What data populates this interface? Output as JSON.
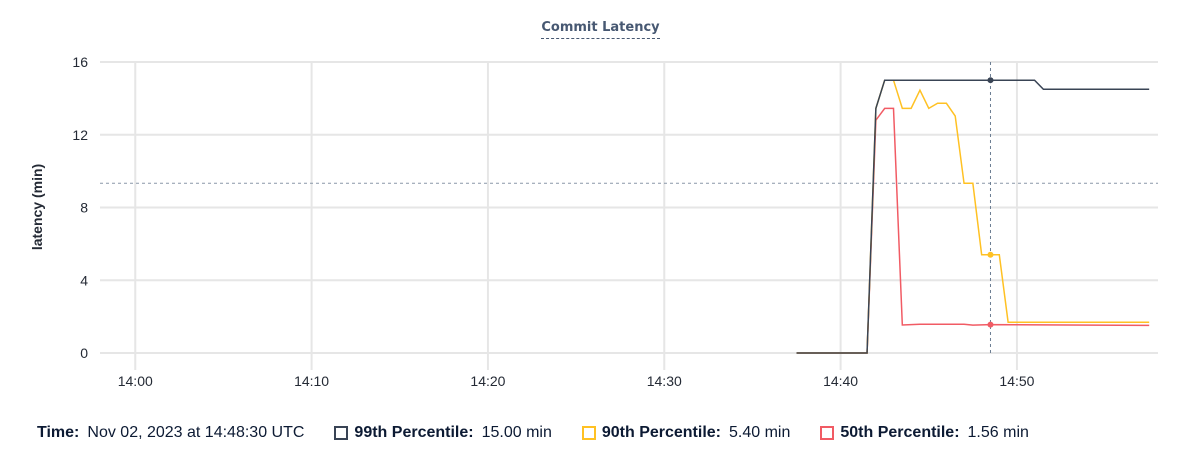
{
  "chart_data": {
    "type": "line",
    "title": "Commit Latency",
    "ylabel": "latency (min)",
    "xlabel": "",
    "ylim": [
      0,
      16
    ],
    "yticks": [
      0,
      4,
      8,
      12,
      16
    ],
    "xlim": [
      "13:58:00",
      "14:58:00"
    ],
    "xticks": [
      "14:00",
      "14:10",
      "14:20",
      "14:30",
      "14:40",
      "14:50"
    ],
    "grid": true,
    "series": [
      {
        "name": "99th Percentile",
        "color": "#394455",
        "points": [
          [
            "14:37:30",
            0
          ],
          [
            "14:41:30",
            0
          ],
          [
            "14:42:00",
            13.45
          ],
          [
            "14:42:30",
            15
          ],
          [
            "14:43:00",
            15
          ],
          [
            "14:51:00",
            15
          ],
          [
            "14:51:30",
            14.5
          ],
          [
            "14:57:30",
            14.5
          ]
        ]
      },
      {
        "name": "90th Percentile",
        "color": "#ffc123",
        "points": [
          [
            "14:37:30",
            0
          ],
          [
            "14:41:30",
            0
          ],
          [
            "14:42:00",
            13.45
          ],
          [
            "14:42:30",
            15
          ],
          [
            "14:43:00",
            15
          ],
          [
            "14:43:30",
            13.45
          ],
          [
            "14:44:00",
            13.45
          ],
          [
            "14:44:30",
            14.45
          ],
          [
            "14:45:00",
            13.45
          ],
          [
            "14:45:30",
            13.73
          ],
          [
            "14:46:00",
            13.73
          ],
          [
            "14:46:30",
            13.03
          ],
          [
            "14:47:00",
            9.33
          ],
          [
            "14:47:30",
            9.33
          ],
          [
            "14:48:00",
            5.4
          ],
          [
            "14:49:00",
            5.4
          ],
          [
            "14:49:30",
            1.69
          ],
          [
            "14:57:30",
            1.69
          ]
        ]
      },
      {
        "name": "50th Percentile",
        "color": "#f15b64",
        "points": [
          [
            "14:37:30",
            0
          ],
          [
            "14:41:30",
            0
          ],
          [
            "14:42:00",
            12.8
          ],
          [
            "14:42:30",
            13.45
          ],
          [
            "14:43:00",
            13.45
          ],
          [
            "14:43:30",
            1.54
          ],
          [
            "14:44:30",
            1.58
          ],
          [
            "14:47:00",
            1.58
          ],
          [
            "14:47:30",
            1.53
          ],
          [
            "14:48:30",
            1.56
          ],
          [
            "14:57:30",
            1.52
          ]
        ]
      }
    ],
    "hover": {
      "time": "14:48:30",
      "y_value": 9.33
    }
  },
  "legend": {
    "time_label": "Time:",
    "time_value": "Nov 02, 2023 at 14:48:30 UTC",
    "items": [
      {
        "label": "99th Percentile:",
        "value": "15.00 min",
        "color": "#394455"
      },
      {
        "label": "90th Percentile:",
        "value": "5.40 min",
        "color": "#ffc123"
      },
      {
        "label": "50th Percentile:",
        "value": "1.56 min",
        "color": "#f15b64"
      }
    ]
  }
}
